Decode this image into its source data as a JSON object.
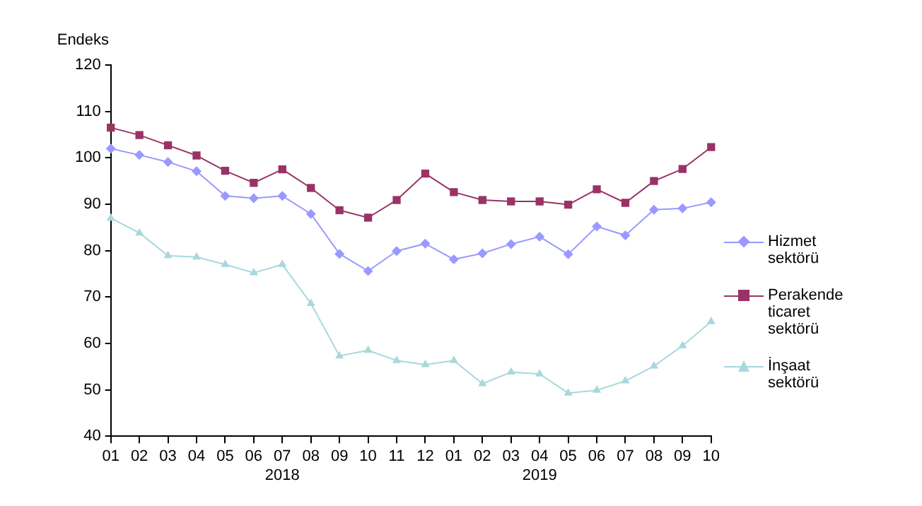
{
  "chart_data": {
    "type": "line",
    "ylabel": "Endeks",
    "categories": [
      "01",
      "02",
      "03",
      "04",
      "05",
      "06",
      "07\n2018",
      "08",
      "09",
      "10",
      "11",
      "12",
      "01",
      "02",
      "03",
      "04\n2019",
      "05",
      "06",
      "07",
      "08",
      "09",
      "10"
    ],
    "series": [
      {
        "name": "Hizmet sektörü",
        "color": "#9999ff",
        "marker": "diamond",
        "values": [
          102.0,
          100.6,
          99.1,
          97.1,
          91.8,
          91.3,
          91.8,
          87.9,
          79.3,
          75.6,
          79.9,
          81.5,
          78.1,
          79.4,
          81.4,
          83.0,
          79.2,
          85.2,
          83.3,
          88.8,
          89.1,
          90.4
        ]
      },
      {
        "name": "Perakende ticaret sektörü",
        "color": "#993366",
        "marker": "square",
        "values": [
          106.5,
          104.9,
          102.7,
          100.5,
          97.2,
          94.6,
          97.5,
          93.5,
          88.7,
          87.1,
          90.9,
          96.6,
          92.6,
          90.9,
          90.6,
          90.6,
          89.9,
          93.2,
          90.3,
          95.0,
          97.6,
          102.3
        ]
      },
      {
        "name": "İnşaat sektörü",
        "color": "#a8d8dc",
        "marker": "triangle",
        "values": [
          87.0,
          83.8,
          78.9,
          78.6,
          77.0,
          75.2,
          77.0,
          68.6,
          57.3,
          58.5,
          56.3,
          55.4,
          56.3,
          51.3,
          53.8,
          53.4,
          49.3,
          49.9,
          51.9,
          55.1,
          59.5,
          64.7
        ]
      }
    ],
    "ylim": [
      40,
      120
    ],
    "yticks": [
      40,
      50,
      60,
      70,
      80,
      90,
      100,
      110,
      120
    ],
    "grid": false,
    "legend": "right"
  }
}
